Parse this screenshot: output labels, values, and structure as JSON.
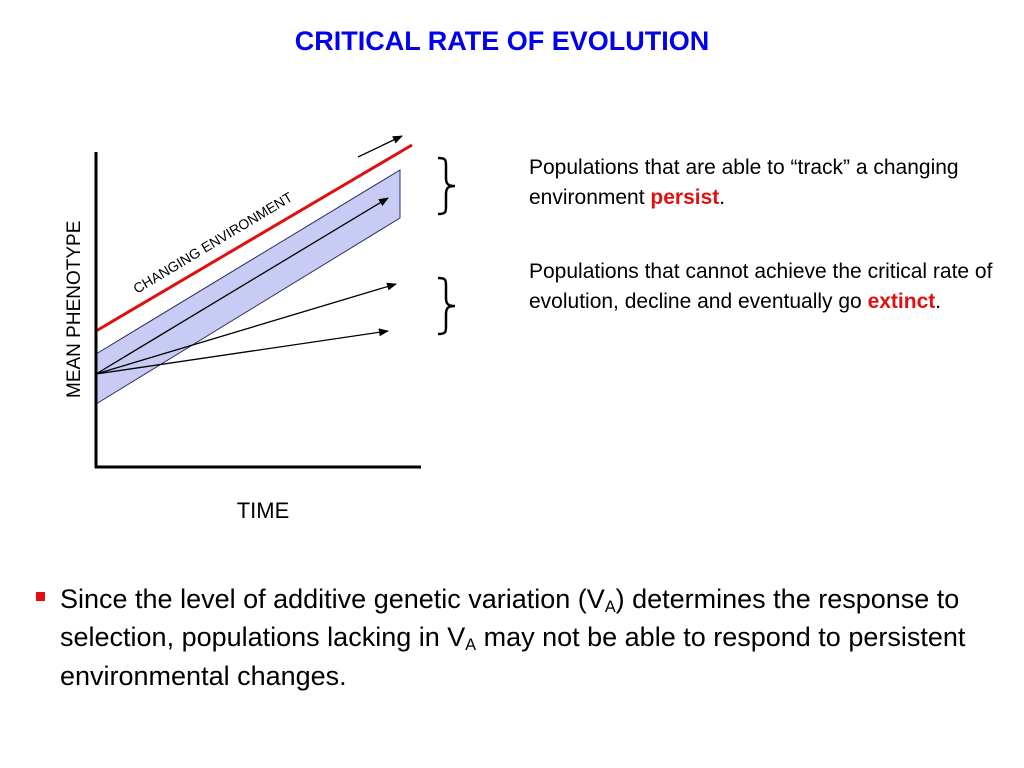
{
  "title": "CRITICAL RATE OF EVOLUTION",
  "diagram": {
    "y_axis_label": "MEAN PHENOTYPE",
    "x_axis_label": "TIME",
    "environment_label": "CHANGING ENVIRONMENT",
    "colors": {
      "environment_line": "#e01010",
      "variation_band_fill": "#c8ccf4",
      "variation_band_stroke": "#303060",
      "axes": "#000000"
    }
  },
  "notes": {
    "persist": {
      "before": "Populations that are able to “track” a changing environment ",
      "highlight": "persist",
      "after": "."
    },
    "extinct": {
      "before": "Populations that cannot achieve the critical rate of evolution, decline and eventually go ",
      "highlight": "extinct",
      "after": "."
    }
  },
  "bullet": {
    "part1": "Since the level of additive genetic variation (V",
    "sub1": "A",
    "part2": ") determines the response to selection, populations lacking in V",
    "sub2": "A",
    "part3": " may not be able to respond to persistent environmental changes."
  }
}
